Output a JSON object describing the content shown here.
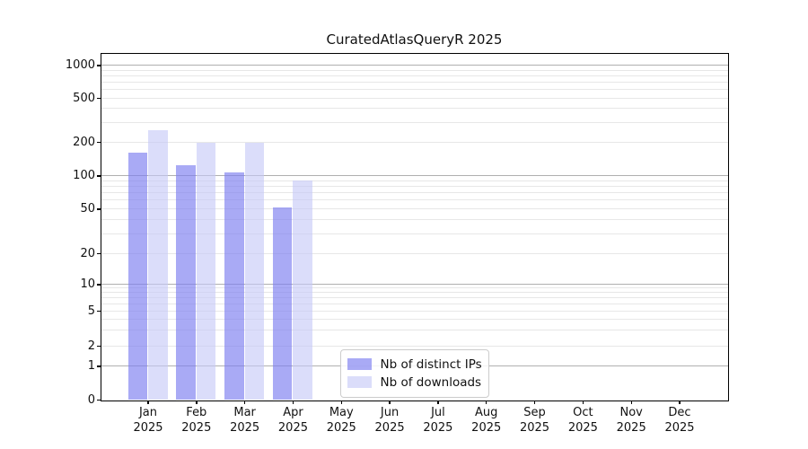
{
  "title": "CuratedAtlasQueryR 2025",
  "chart_data": {
    "type": "bar",
    "title": "CuratedAtlasQueryR 2025",
    "categories": [
      "Jan 2025",
      "Feb 2025",
      "Mar 2025",
      "Apr 2025",
      "May 2025",
      "Jun 2025",
      "Jul 2025",
      "Aug 2025",
      "Sep 2025",
      "Oct 2025",
      "Nov 2025",
      "Dec 2025"
    ],
    "series": [
      {
        "name": "Nb of distinct IPs",
        "color": "#7c7ef0a8",
        "values": [
          160,
          123,
          107,
          51,
          0,
          0,
          0,
          0,
          0,
          0,
          0,
          0
        ]
      },
      {
        "name": "Nb of downloads",
        "color": "#c5c8f79e",
        "values": [
          253,
          197,
          197,
          90,
          0,
          0,
          0,
          0,
          0,
          0,
          0,
          0
        ]
      }
    ],
    "xlabel": "",
    "ylabel": "",
    "yscale": "symlog",
    "yticks": [
      0,
      1,
      2,
      5,
      10,
      20,
      50,
      100,
      200,
      500,
      1000
    ],
    "ylim": [
      0,
      1300
    ],
    "grid": "horizontal major and log-minor gridlines",
    "legend_position": "inside lower-center-left",
    "colors": {
      "axis": "#000000",
      "text": "#111111",
      "grid_major": "#b0b0b0",
      "grid_minor": "#e7e7e7",
      "legend_border": "#cccccc",
      "background": "#ffffff"
    }
  }
}
